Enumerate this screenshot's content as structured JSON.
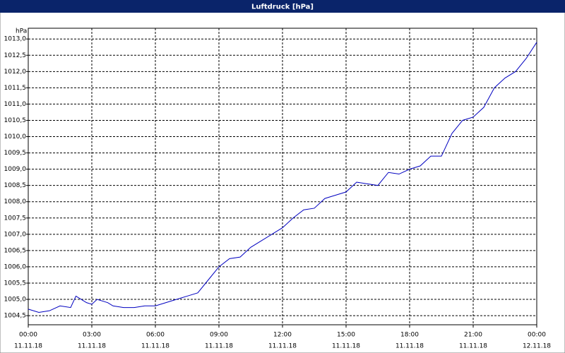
{
  "chart_data": {
    "type": "line",
    "title": "Luftdruck [hPa]",
    "y_label": "hPa",
    "x": [
      0,
      0.5,
      1,
      1.5,
      2,
      2.25,
      2.75,
      3,
      3.25,
      3.75,
      4,
      4.5,
      5,
      5.5,
      6,
      6.5,
      7,
      7.5,
      8,
      8.5,
      9,
      9.5,
      10,
      10.5,
      11,
      11.5,
      12,
      12.5,
      13,
      13.5,
      14,
      14.5,
      15,
      15.5,
      16,
      16.5,
      17,
      17.5,
      18,
      18.5,
      19,
      19.5,
      20,
      20.5,
      21,
      21.5,
      22,
      22.5,
      23,
      23.5,
      24
    ],
    "series": [
      {
        "name": "Luftdruck",
        "color": "#0000c0",
        "values": [
          1004.7,
          1004.6,
          1004.65,
          1004.8,
          1004.75,
          1005.1,
          1004.9,
          1004.85,
          1005.0,
          1004.9,
          1004.8,
          1004.75,
          1004.75,
          1004.8,
          1004.8,
          1004.9,
          1005.0,
          1005.1,
          1005.2,
          1005.6,
          1006.0,
          1006.25,
          1006.3,
          1006.6,
          1006.8,
          1007.0,
          1007.2,
          1007.5,
          1007.75,
          1007.8,
          1008.1,
          1008.2,
          1008.3,
          1008.6,
          1008.55,
          1008.5,
          1008.9,
          1008.85,
          1009.0,
          1009.1,
          1009.4,
          1009.4,
          1010.1,
          1010.5,
          1010.6,
          1010.9,
          1011.5,
          1011.8,
          1012.0,
          1012.4,
          1012.9
        ]
      }
    ],
    "xlim": [
      0,
      24
    ],
    "xticks": [
      {
        "value": 0,
        "label": "00:00"
      },
      {
        "value": 3,
        "label": "03:00"
      },
      {
        "value": 6,
        "label": "06:00"
      },
      {
        "value": 9,
        "label": "09:00"
      },
      {
        "value": 12,
        "label": "12:00"
      },
      {
        "value": 15,
        "label": "15:00"
      },
      {
        "value": 18,
        "label": "18:00"
      },
      {
        "value": 21,
        "label": "21:00"
      },
      {
        "value": 24,
        "label": "00:00"
      }
    ],
    "xtick_dates": [
      "11.11.18",
      "11.11.18",
      "11.11.18",
      "11.11.18",
      "11.11.18",
      "11.11.18",
      "11.11.18",
      "11.11.18",
      "12.11.18"
    ],
    "ylim": [
      1004.22,
      1013.33
    ],
    "yticks": [
      {
        "value": 1004.5,
        "label": "1004,5"
      },
      {
        "value": 1005,
        "label": "1005,0"
      },
      {
        "value": 1005.5,
        "label": "1005,5"
      },
      {
        "value": 1006,
        "label": "1006,0"
      },
      {
        "value": 1006.5,
        "label": "1006,5"
      },
      {
        "value": 1007,
        "label": "1007,0"
      },
      {
        "value": 1007.5,
        "label": "1007,5"
      },
      {
        "value": 1008,
        "label": "1008,0"
      },
      {
        "value": 1008.5,
        "label": "1008,5"
      },
      {
        "value": 1009,
        "label": "1009,0"
      },
      {
        "value": 1009.5,
        "label": "1009,5"
      },
      {
        "value": 1010,
        "label": "1010,0"
      },
      {
        "value": 1010.5,
        "label": "1010,5"
      },
      {
        "value": 1011,
        "label": "1011,0"
      },
      {
        "value": 1011.5,
        "label": "1011,5"
      },
      {
        "value": 1012,
        "label": "1012,0"
      },
      {
        "value": 1012.5,
        "label": "1012,5"
      },
      {
        "value": 1013,
        "label": "1013,0"
      }
    ],
    "grid": true
  }
}
